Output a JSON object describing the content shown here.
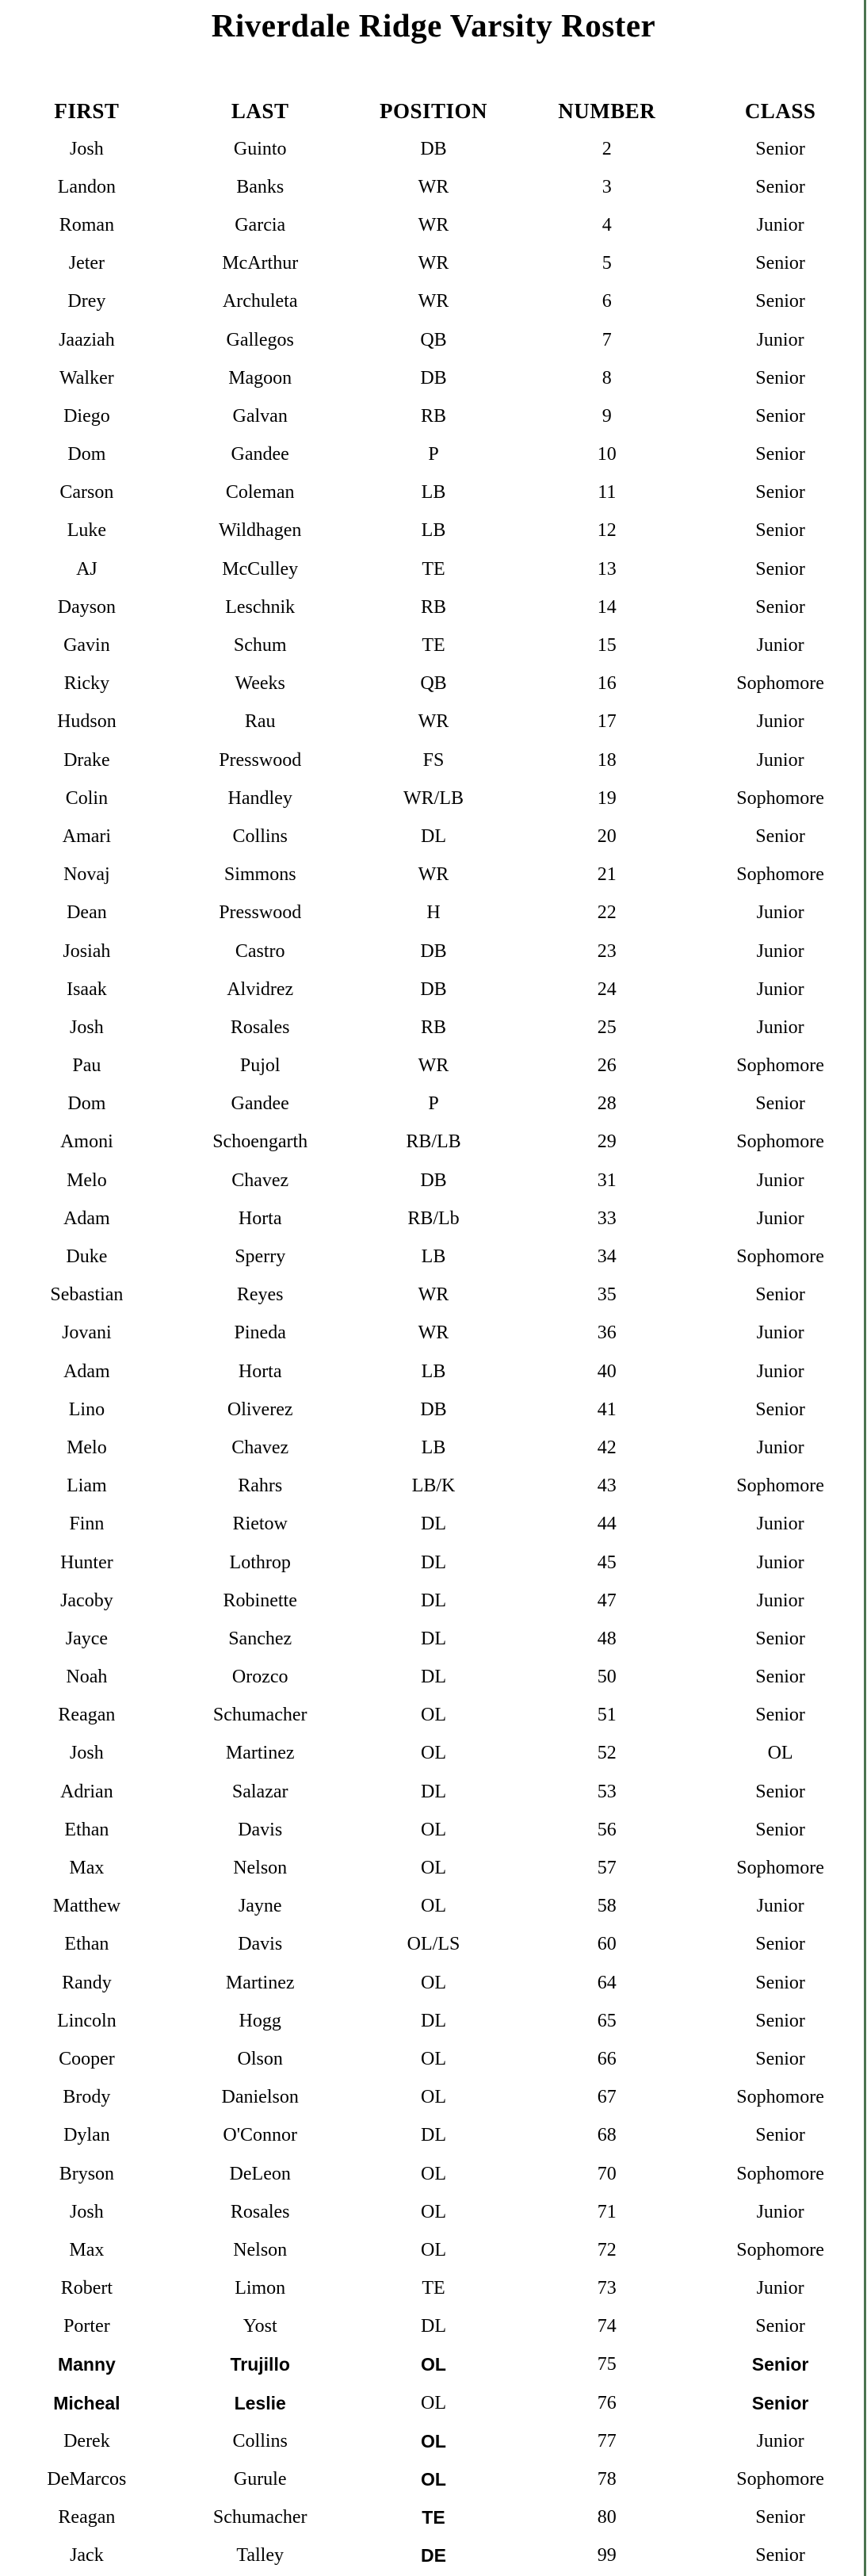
{
  "title": "Riverdale Ridge Varsity Roster",
  "colors": {
    "page_background": "#ffffff",
    "text": "#000000",
    "right_border": "#4b7450"
  },
  "table": {
    "columns": [
      "FIRST",
      "LAST",
      "POSITION",
      "NUMBER",
      "CLASS"
    ],
    "rows": [
      {
        "first": "Josh",
        "last": "Guinto",
        "position": "DB",
        "number": "2",
        "class": "Senior"
      },
      {
        "first": "Landon",
        "last": "Banks",
        "position": "WR",
        "number": "3",
        "class": "Senior"
      },
      {
        "first": "Roman",
        "last": "Garcia",
        "position": "WR",
        "number": "4",
        "class": "Junior"
      },
      {
        "first": "Jeter",
        "last": "McArthur",
        "position": "WR",
        "number": "5",
        "class": "Senior"
      },
      {
        "first": "Drey",
        "last": "Archuleta",
        "position": "WR",
        "number": "6",
        "class": "Senior"
      },
      {
        "first": "Jaaziah",
        "last": "Gallegos",
        "position": "QB",
        "number": "7",
        "class": "Junior"
      },
      {
        "first": "Walker",
        "last": "Magoon",
        "position": "DB",
        "number": "8",
        "class": "Senior"
      },
      {
        "first": "Diego",
        "last": "Galvan",
        "position": "RB",
        "number": "9",
        "class": "Senior"
      },
      {
        "first": "Dom",
        "last": "Gandee",
        "position": "P",
        "number": "10",
        "class": "Senior"
      },
      {
        "first": "Carson",
        "last": "Coleman",
        "position": "LB",
        "number": "11",
        "class": "Senior"
      },
      {
        "first": "Luke",
        "last": "Wildhagen",
        "position": "LB",
        "number": "12",
        "class": "Senior"
      },
      {
        "first": "AJ",
        "last": "McCulley",
        "position": "TE",
        "number": "13",
        "class": "Senior"
      },
      {
        "first": "Dayson",
        "last": "Leschnik",
        "position": "RB",
        "number": "14",
        "class": "Senior"
      },
      {
        "first": "Gavin",
        "last": "Schum",
        "position": "TE",
        "number": "15",
        "class": "Junior"
      },
      {
        "first": "Ricky",
        "last": "Weeks",
        "position": "QB",
        "number": "16",
        "class": "Sophomore"
      },
      {
        "first": "Hudson",
        "last": "Rau",
        "position": "WR",
        "number": "17",
        "class": "Junior"
      },
      {
        "first": "Drake",
        "last": "Presswood",
        "position": "FS",
        "number": "18",
        "class": "Junior"
      },
      {
        "first": "Colin",
        "last": "Handley",
        "position": "WR/LB",
        "number": "19",
        "class": "Sophomore"
      },
      {
        "first": "Amari",
        "last": "Collins",
        "position": "DL",
        "number": "20",
        "class": "Senior"
      },
      {
        "first": "Novaj",
        "last": "Simmons",
        "position": "WR",
        "number": "21",
        "class": "Sophomore"
      },
      {
        "first": "Dean",
        "last": "Presswood",
        "position": "H",
        "number": "22",
        "class": "Junior"
      },
      {
        "first": "Josiah",
        "last": "Castro",
        "position": "DB",
        "number": "23",
        "class": "Junior"
      },
      {
        "first": "Isaak",
        "last": "Alvidrez",
        "position": "DB",
        "number": "24",
        "class": "Junior"
      },
      {
        "first": "Josh",
        "last": "Rosales",
        "position": "RB",
        "number": "25",
        "class": "Junior"
      },
      {
        "first": "Pau",
        "last": "Pujol",
        "position": "WR",
        "number": "26",
        "class": "Sophomore"
      },
      {
        "first": "Dom",
        "last": "Gandee",
        "position": "P",
        "number": "28",
        "class": "Senior"
      },
      {
        "first": "Amoni",
        "last": "Schoengarth",
        "position": "RB/LB",
        "number": "29",
        "class": "Sophomore"
      },
      {
        "first": "Melo",
        "last": "Chavez",
        "position": "DB",
        "number": "31",
        "class": "Junior"
      },
      {
        "first": "Adam",
        "last": "Horta",
        "position": "RB/Lb",
        "number": "33",
        "class": "Junior"
      },
      {
        "first": "Duke",
        "last": "Sperry",
        "position": "LB",
        "number": "34",
        "class": "Sophomore"
      },
      {
        "first": "Sebastian",
        "last": "Reyes",
        "position": "WR",
        "number": "35",
        "class": "Senior"
      },
      {
        "first": "Jovani",
        "last": "Pineda",
        "position": "WR",
        "number": "36",
        "class": "Junior"
      },
      {
        "first": "Adam",
        "last": "Horta",
        "position": "LB",
        "number": "40",
        "class": "Junior"
      },
      {
        "first": "Lino",
        "last": "Oliverez",
        "position": "DB",
        "number": "41",
        "class": "Senior"
      },
      {
        "first": "Melo",
        "last": "Chavez",
        "position": "LB",
        "number": "42",
        "class": "Junior"
      },
      {
        "first": "Liam",
        "last": "Rahrs",
        "position": "LB/K",
        "number": "43",
        "class": "Sophomore"
      },
      {
        "first": "Finn",
        "last": "Rietow",
        "position": "DL",
        "number": "44",
        "class": "Junior"
      },
      {
        "first": "Hunter",
        "last": "Lothrop",
        "position": "DL",
        "number": "45",
        "class": "Junior"
      },
      {
        "first": "Jacoby",
        "last": "Robinette",
        "position": "DL",
        "number": "47",
        "class": "Junior"
      },
      {
        "first": "Jayce",
        "last": "Sanchez",
        "position": "DL",
        "number": "48",
        "class": "Senior"
      },
      {
        "first": "Noah",
        "last": "Orozco",
        "position": "DL",
        "number": "50",
        "class": "Senior"
      },
      {
        "first": "Reagan",
        "last": "Schumacher",
        "position": "OL",
        "number": "51",
        "class": "Senior"
      },
      {
        "first": "Josh",
        "last": "Martinez",
        "position": "OL",
        "number": "52",
        "class": "OL"
      },
      {
        "first": "Adrian",
        "last": "Salazar",
        "position": "DL",
        "number": "53",
        "class": "Senior"
      },
      {
        "first": "Ethan",
        "last": "Davis",
        "position": "OL",
        "number": "56",
        "class": "Senior"
      },
      {
        "first": "Max",
        "last": "Nelson",
        "position": "OL",
        "number": "57",
        "class": "Sophomore"
      },
      {
        "first": "Matthew",
        "last": "Jayne",
        "position": "OL",
        "number": "58",
        "class": "Junior"
      },
      {
        "first": "Ethan",
        "last": "Davis",
        "position": "OL/LS",
        "number": "60",
        "class": "Senior"
      },
      {
        "first": "Randy",
        "last": "Martinez",
        "position": "OL",
        "number": "64",
        "class": "Senior"
      },
      {
        "first": "Lincoln",
        "last": "Hogg",
        "position": "DL",
        "number": "65",
        "class": "Senior"
      },
      {
        "first": "Cooper",
        "last": "Olson",
        "position": "OL",
        "number": "66",
        "class": "Senior"
      },
      {
        "first": "Brody",
        "last": "Danielson",
        "position": "OL",
        "number": "67",
        "class": "Sophomore"
      },
      {
        "first": "Dylan",
        "last": "O'Connor",
        "position": "DL",
        "number": "68",
        "class": "Senior"
      },
      {
        "first": "Bryson",
        "last": "DeLeon",
        "position": "OL",
        "number": "70",
        "class": "Sophomore"
      },
      {
        "first": "Josh",
        "last": "Rosales",
        "position": "OL",
        "number": "71",
        "class": "Junior"
      },
      {
        "first": "Max",
        "last": "Nelson",
        "position": "OL",
        "number": "72",
        "class": "Sophomore"
      },
      {
        "first": "Robert",
        "last": "Limon",
        "position": "TE",
        "number": "73",
        "class": "Junior"
      },
      {
        "first": "Porter",
        "last": "Yost",
        "position": "DL",
        "number": "74",
        "class": "Senior"
      },
      {
        "first": "Manny",
        "last": "Trujillo",
        "position": "OL",
        "number": "75",
        "class": "Senior",
        "sans_cells": [
          "first",
          "last",
          "position",
          "class"
        ]
      },
      {
        "first": "Micheal",
        "last": "Leslie",
        "position": "OL",
        "number": "76",
        "class": "Senior",
        "sans_cells": [
          "first",
          "last",
          "class"
        ]
      },
      {
        "first": "Derek",
        "last": "Collins",
        "position": "OL",
        "number": "77",
        "class": "Junior",
        "sans_cells": [
          "position"
        ]
      },
      {
        "first": "DeMarcos",
        "last": "Gurule",
        "position": "OL",
        "number": "78",
        "class": "Sophomore",
        "sans_cells": [
          "position"
        ]
      },
      {
        "first": "Reagan",
        "last": "Schumacher",
        "position": "TE",
        "number": "80",
        "class": "Senior",
        "sans_cells": [
          "position"
        ]
      },
      {
        "first": "Jack",
        "last": "Talley",
        "position": "DE",
        "number": "99",
        "class": "Senior",
        "sans_cells": [
          "position"
        ]
      }
    ]
  }
}
